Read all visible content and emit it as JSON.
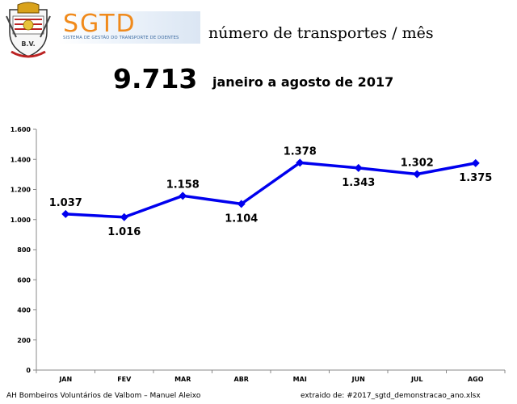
{
  "header": {
    "crest_letters": "B.V.",
    "logo_text": "SGTD",
    "logo_subtitle": "SISTEMA DE GESTÃO DO TRANSPORTE DE DOENTES",
    "subject": "número de transportes / mês",
    "total": "9.713",
    "period": "janeiro a agosto de 2017"
  },
  "colors": {
    "line": "#0000ee",
    "logo_orange": "#f08a1c",
    "logo_blue": "#3b82c4"
  },
  "chart_data": {
    "type": "line",
    "categories": [
      "JAN",
      "FEV",
      "MAR",
      "ABR",
      "MAI",
      "JUN",
      "JUL",
      "AGO"
    ],
    "values": [
      1037,
      1016,
      1158,
      1104,
      1378,
      1343,
      1302,
      1375
    ],
    "value_labels": [
      "1.037",
      "1.016",
      "1.158",
      "1.104",
      "1.378",
      "1.343",
      "1.302",
      "1.375"
    ],
    "ylim": [
      0,
      1600
    ],
    "yticks": [
      0,
      200,
      400,
      600,
      800,
      1000,
      1200,
      1400,
      1600
    ],
    "ytick_labels": [
      "0",
      "200",
      "400",
      "600",
      "800",
      "1.000",
      "1.200",
      "1.400",
      "1.600"
    ],
    "grid": false,
    "legend": "none",
    "marker": "diamond"
  },
  "footer": {
    "credit": "AH Bombeiros Voluntários de Valbom – Manuel Aleixo",
    "source_prefix": "extraido de:",
    "source_file": "#2017_sgtd_demonstracao_ano.xlsx"
  }
}
